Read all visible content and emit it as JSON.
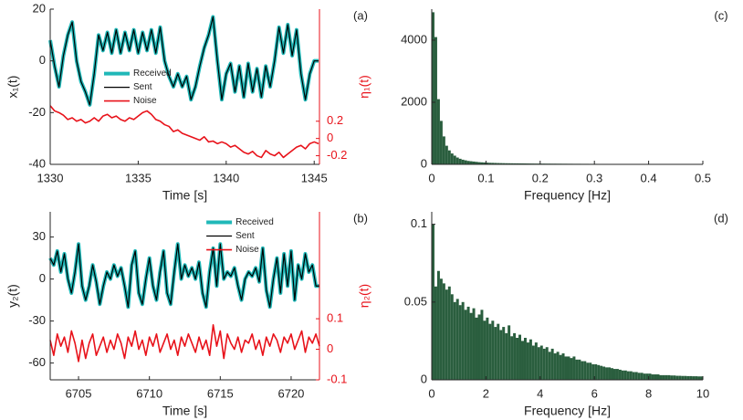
{
  "chart_data": [
    {
      "type": "line",
      "annotation": "(a)",
      "xlabel": "Time [s]",
      "ylabel": "x₁(t)",
      "y2label": "η₁(t)",
      "legend": "center-left",
      "xlim": [
        1330,
        1345.3
      ],
      "xticks": [
        1330,
        1335,
        1340,
        1345
      ],
      "ylim": [
        -40,
        20
      ],
      "yticks": [
        -40,
        -20,
        0,
        20
      ],
      "y2lim": [
        -0.3,
        1.5
      ],
      "y2ticks": [
        -0.2,
        0,
        0.2
      ],
      "y2color": "#e8121a",
      "x": [
        1330,
        1330.25,
        1330.5,
        1330.75,
        1331,
        1331.25,
        1331.5,
        1331.75,
        1332,
        1332.25,
        1332.5,
        1332.75,
        1333,
        1333.25,
        1333.5,
        1333.75,
        1334,
        1334.25,
        1334.5,
        1334.75,
        1335,
        1335.25,
        1335.5,
        1335.75,
        1336,
        1336.25,
        1336.5,
        1336.75,
        1337,
        1337.25,
        1337.5,
        1337.75,
        1338,
        1338.25,
        1338.5,
        1338.75,
        1339,
        1339.25,
        1339.5,
        1339.75,
        1340,
        1340.25,
        1340.5,
        1340.75,
        1341,
        1341.25,
        1341.5,
        1341.75,
        1342,
        1342.25,
        1342.5,
        1342.75,
        1343,
        1343.25,
        1343.5,
        1343.75,
        1344,
        1344.25,
        1344.5,
        1344.75,
        1345,
        1345.25
      ],
      "series": [
        {
          "name": "Received",
          "color": "#20b8b8",
          "values": [
            8,
            -2,
            -10,
            2,
            10,
            15,
            0,
            -8,
            -12,
            -17,
            -5,
            10,
            4,
            11,
            3,
            12,
            3,
            11,
            4,
            12,
            3,
            11,
            4,
            12,
            3,
            13,
            0,
            -6,
            -10,
            -5,
            -10,
            -6,
            -15,
            -10,
            -2,
            5,
            10,
            17,
            0,
            -15,
            -5,
            -1,
            -12,
            -2,
            -14,
            -1,
            -12,
            -3,
            -14,
            -2,
            -10,
            0,
            13,
            3,
            14,
            2,
            12,
            -5,
            -15,
            -5,
            0,
            0
          ]
        },
        {
          "name": "Sent",
          "color": "#000000",
          "values": [
            8,
            -2,
            -10,
            2,
            10,
            15,
            0,
            -8,
            -12,
            -17,
            -5,
            10,
            4,
            11,
            3,
            12,
            3,
            11,
            4,
            12,
            3,
            11,
            4,
            12,
            3,
            13,
            0,
            -6,
            -10,
            -5,
            -10,
            -6,
            -15,
            -10,
            -2,
            5,
            10,
            17,
            0,
            -15,
            -5,
            -1,
            -12,
            -2,
            -14,
            -1,
            -12,
            -3,
            -14,
            -2,
            -10,
            0,
            13,
            3,
            14,
            2,
            12,
            -5,
            -15,
            -5,
            0,
            0
          ]
        },
        {
          "name": "Noise",
          "color": "#e8121a",
          "axis": "y2",
          "values": [
            0.38,
            0.32,
            0.3,
            0.27,
            0.22,
            0.24,
            0.2,
            0.22,
            0.18,
            0.2,
            0.24,
            0.2,
            0.26,
            0.28,
            0.24,
            0.26,
            0.22,
            0.2,
            0.24,
            0.22,
            0.26,
            0.3,
            0.32,
            0.28,
            0.22,
            0.2,
            0.16,
            0.14,
            0.08,
            0.1,
            0.06,
            0.04,
            0.02,
            0,
            -0.02,
            0.02,
            -0.04,
            -0.03,
            -0.06,
            -0.04,
            -0.06,
            -0.1,
            -0.08,
            -0.12,
            -0.16,
            -0.18,
            -0.15,
            -0.2,
            -0.22,
            -0.14,
            -0.18,
            -0.2,
            -0.16,
            -0.22,
            -0.18,
            -0.14,
            -0.1,
            -0.08,
            -0.12,
            -0.06,
            -0.04,
            -0.06
          ]
        }
      ]
    },
    {
      "type": "line",
      "annotation": "(b)",
      "xlabel": "Time [s]",
      "ylabel": "y₂(t)",
      "y2label": "η₂(t)",
      "legend": "upper-center",
      "xlim": [
        6703,
        6722
      ],
      "xticks": [
        6705,
        6710,
        6715,
        6720
      ],
      "ylim": [
        -72,
        48
      ],
      "yticks": [
        -60,
        -30,
        0,
        30
      ],
      "y2lim": [
        -0.1,
        0.45
      ],
      "y2ticks": [
        -0.1,
        0,
        0.1
      ],
      "y2color": "#e8121a",
      "x": [
        6703,
        6703.25,
        6703.5,
        6703.75,
        6704,
        6704.25,
        6704.5,
        6704.75,
        6705,
        6705.25,
        6705.5,
        6705.75,
        6706,
        6706.25,
        6706.5,
        6706.75,
        6707,
        6707.25,
        6707.5,
        6707.75,
        6708,
        6708.25,
        6708.5,
        6708.75,
        6709,
        6709.25,
        6709.5,
        6709.75,
        6710,
        6710.25,
        6710.5,
        6710.75,
        6711,
        6711.25,
        6711.5,
        6711.75,
        6712,
        6712.25,
        6712.5,
        6712.75,
        6713,
        6713.25,
        6713.5,
        6713.75,
        6714,
        6714.25,
        6714.5,
        6714.75,
        6715,
        6715.25,
        6715.5,
        6715.75,
        6716,
        6716.25,
        6716.5,
        6716.75,
        6717,
        6717.25,
        6717.5,
        6717.75,
        6718,
        6718.25,
        6718.5,
        6718.75,
        6719,
        6719.25,
        6719.5,
        6719.75,
        6720,
        6720.25,
        6720.5,
        6720.75,
        6721,
        6721.25,
        6721.5,
        6721.75,
        6722
      ],
      "series": [
        {
          "name": "Received",
          "color": "#20b8b8",
          "values": [
            15,
            10,
            20,
            5,
            18,
            0,
            -10,
            5,
            25,
            -5,
            -15,
            -5,
            10,
            -2,
            -18,
            -5,
            5,
            0,
            10,
            2,
            8,
            -5,
            -20,
            10,
            20,
            -10,
            -18,
            0,
            15,
            -5,
            -15,
            5,
            20,
            -10,
            -18,
            5,
            25,
            0,
            10,
            2,
            8,
            0,
            12,
            -10,
            -20,
            5,
            22,
            -5,
            25,
            0,
            5,
            2,
            8,
            -5,
            -15,
            0,
            5,
            2,
            8,
            -2,
            22,
            -8,
            -20,
            0,
            15,
            -10,
            18,
            -5,
            20,
            -15,
            10,
            0,
            18,
            5,
            10,
            -5,
            -5
          ]
        },
        {
          "name": "Sent",
          "color": "#000000",
          "values": [
            15,
            10,
            20,
            5,
            18,
            0,
            -10,
            5,
            25,
            -5,
            -15,
            -5,
            10,
            -2,
            -18,
            -5,
            5,
            0,
            10,
            2,
            8,
            -5,
            -20,
            10,
            20,
            -10,
            -18,
            0,
            15,
            -5,
            -15,
            5,
            20,
            -10,
            -18,
            5,
            25,
            0,
            10,
            2,
            8,
            0,
            12,
            -10,
            -20,
            5,
            22,
            -5,
            25,
            0,
            5,
            2,
            8,
            -5,
            -15,
            0,
            5,
            2,
            8,
            -2,
            22,
            -8,
            -20,
            0,
            15,
            -10,
            18,
            -5,
            20,
            -15,
            10,
            0,
            18,
            5,
            10,
            -5,
            -5
          ]
        },
        {
          "name": "Noise",
          "color": "#e8121a",
          "axis": "y2",
          "values": [
            0.03,
            -0.02,
            0.05,
            0.01,
            0.04,
            -0.01,
            0.06,
            0.02,
            -0.04,
            0.03,
            -0.03,
            0.02,
            0.05,
            -0.02,
            0.01,
            0.04,
            -0.01,
            0.03,
            0,
            0.05,
            0.02,
            -0.03,
            0.04,
            0.01,
            0.06,
            0,
            0.03,
            -0.02,
            0.04,
            0.01,
            0.05,
            -0.01,
            0.02,
            0.05,
            0,
            0.03,
            -0.02,
            0.04,
            0.01,
            0.05,
            0.02,
            -0.01,
            0.04,
            0,
            0.03,
            -0.02,
            0.08,
            0.01,
            0.06,
            -0.03,
            0.05,
            0.02,
            0,
            0.04,
            -0.01,
            0.03,
            0.02,
            0.05,
            0,
            0.03,
            -0.02,
            0.04,
            0.01,
            0.05,
            0.03,
            -0.01,
            0.04,
            0.02,
            0.05,
            0,
            0.03,
            0.06,
            -0.01,
            0.04,
            0.02,
            0.05,
            0.01
          ]
        }
      ]
    },
    {
      "type": "bar",
      "annotation": "(c)",
      "xlabel": "Frequency [Hz]",
      "color": "#2a5e3e",
      "xlim": [
        0,
        0.5
      ],
      "xticks": [
        0,
        0.1,
        0.2,
        0.3,
        0.4,
        0.5
      ],
      "ylim": [
        0,
        5000
      ],
      "yticks": [
        0,
        2000,
        4000
      ],
      "x": [
        0,
        0.005,
        0.01,
        0.015,
        0.02,
        0.025,
        0.03,
        0.035,
        0.04,
        0.045,
        0.05,
        0.055,
        0.06,
        0.065,
        0.07,
        0.075,
        0.08,
        0.085,
        0.09,
        0.095,
        0.1,
        0.105,
        0.11,
        0.115,
        0.12,
        0.125,
        0.13,
        0.135,
        0.14,
        0.145,
        0.15,
        0.155,
        0.16,
        0.165,
        0.17,
        0.175,
        0.18,
        0.185,
        0.19,
        0.195,
        0.2,
        0.205,
        0.21,
        0.215,
        0.22,
        0.225,
        0.23,
        0.235,
        0.24,
        0.245,
        0.25,
        0.255,
        0.26,
        0.265,
        0.27,
        0.275,
        0.28,
        0.285,
        0.29,
        0.295,
        0.3,
        0.305,
        0.31,
        0.315,
        0.32,
        0.325,
        0.33,
        0.335,
        0.34,
        0.345,
        0.35,
        0.355,
        0.36,
        0.365,
        0.37,
        0.375,
        0.38,
        0.385,
        0.39,
        0.395,
        0.4,
        0.405,
        0.41,
        0.415,
        0.42,
        0.425,
        0.43,
        0.435,
        0.44,
        0.445,
        0.45,
        0.455,
        0.46,
        0.465,
        0.47,
        0.475,
        0.48,
        0.485,
        0.49,
        0.495
      ],
      "values": [
        4900,
        4100,
        2100,
        1400,
        900,
        600,
        450,
        350,
        280,
        220,
        180,
        150,
        130,
        110,
        100,
        90,
        80,
        70,
        65,
        60,
        55,
        50,
        48,
        45,
        42,
        40,
        38,
        36,
        35,
        34,
        33,
        32,
        31,
        30,
        29,
        28,
        27,
        26,
        25,
        25,
        24,
        24,
        23,
        23,
        22,
        22,
        21,
        21,
        20,
        20,
        19,
        19,
        18,
        18,
        18,
        17,
        17,
        17,
        16,
        16,
        16,
        15,
        15,
        15,
        15,
        14,
        14,
        14,
        14,
        13,
        13,
        13,
        13,
        13,
        12,
        12,
        12,
        12,
        12,
        12,
        11,
        11,
        11,
        11,
        11,
        11,
        10,
        10,
        10,
        10,
        10,
        10,
        10,
        10,
        10,
        9,
        9,
        9,
        9,
        9
      ]
    },
    {
      "type": "bar",
      "annotation": "(d)",
      "xlabel": "Frequency [Hz]",
      "color": "#2a5e3e",
      "xlim": [
        0,
        10
      ],
      "xticks": [
        0,
        2,
        4,
        6,
        8,
        10
      ],
      "ylim": [
        0,
        0.108
      ],
      "yticks": [
        0,
        0.05,
        0.1
      ],
      "x": [
        0,
        0.1,
        0.2,
        0.3,
        0.4,
        0.5,
        0.6,
        0.7,
        0.8,
        0.9,
        1,
        1.1,
        1.2,
        1.3,
        1.4,
        1.5,
        1.6,
        1.7,
        1.8,
        1.9,
        2,
        2.1,
        2.2,
        2.3,
        2.4,
        2.5,
        2.6,
        2.7,
        2.8,
        2.9,
        3,
        3.1,
        3.2,
        3.3,
        3.4,
        3.5,
        3.6,
        3.7,
        3.8,
        3.9,
        4,
        4.1,
        4.2,
        4.3,
        4.4,
        4.5,
        4.6,
        4.7,
        4.8,
        4.9,
        5,
        5.1,
        5.2,
        5.3,
        5.4,
        5.5,
        5.6,
        5.7,
        5.8,
        5.9,
        6,
        6.1,
        6.2,
        6.3,
        6.4,
        6.5,
        6.6,
        6.7,
        6.8,
        6.9,
        7,
        7.1,
        7.2,
        7.3,
        7.4,
        7.5,
        7.6,
        7.7,
        7.8,
        7.9,
        8,
        8.1,
        8.2,
        8.3,
        8.4,
        8.5,
        8.6,
        8.7,
        8.8,
        8.9,
        9,
        9.1,
        9.2,
        9.3,
        9.4,
        9.5,
        9.6,
        9.7,
        9.8,
        9.9
      ],
      "values": [
        0.1,
        0.06,
        0.07,
        0.065,
        0.062,
        0.058,
        0.06,
        0.055,
        0.05,
        0.052,
        0.048,
        0.05,
        0.045,
        0.047,
        0.043,
        0.046,
        0.04,
        0.042,
        0.045,
        0.038,
        0.04,
        0.036,
        0.038,
        0.034,
        0.036,
        0.032,
        0.034,
        0.03,
        0.035,
        0.028,
        0.03,
        0.027,
        0.029,
        0.025,
        0.027,
        0.024,
        0.026,
        0.022,
        0.024,
        0.021,
        0.022,
        0.02,
        0.021,
        0.018,
        0.02,
        0.017,
        0.018,
        0.016,
        0.017,
        0.015,
        0.015,
        0.014,
        0.015,
        0.013,
        0.013,
        0.012,
        0.012,
        0.011,
        0.011,
        0.01,
        0.01,
        0.0095,
        0.009,
        0.0085,
        0.008,
        0.008,
        0.0075,
        0.007,
        0.007,
        0.0065,
        0.006,
        0.006,
        0.0055,
        0.0055,
        0.005,
        0.005,
        0.0045,
        0.0045,
        0.004,
        0.004,
        0.004,
        0.0035,
        0.0035,
        0.0035,
        0.003,
        0.003,
        0.003,
        0.003,
        0.0028,
        0.0028,
        0.0026,
        0.0026,
        0.0025,
        0.0025,
        0.0024,
        0.0024,
        0.0023,
        0.0023,
        0.0022,
        0.0022
      ]
    }
  ]
}
